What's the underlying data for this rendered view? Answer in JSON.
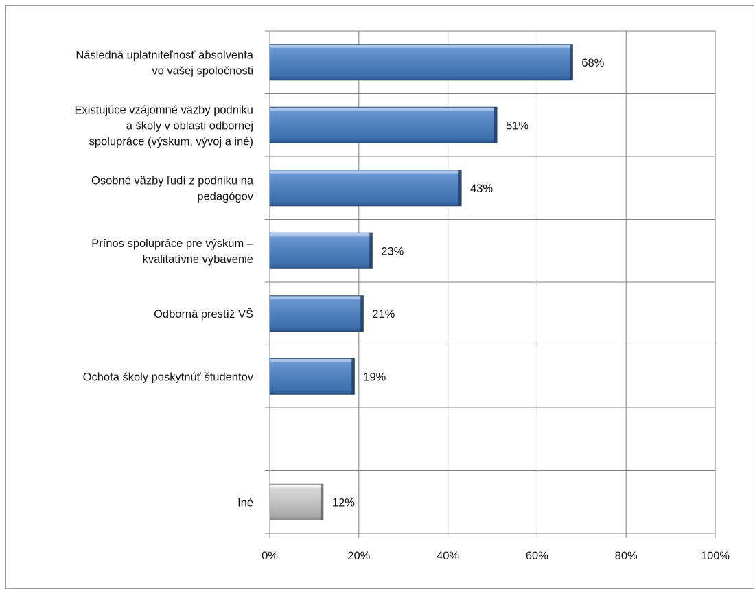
{
  "chart_data": {
    "type": "bar",
    "orientation": "horizontal",
    "categories": [
      [
        "Následná uplatniteľnosť absolventa",
        "vo vašej spoločnosti"
      ],
      [
        "Existujúce vzájomné väzby podniku",
        "a školy v oblasti odbornej",
        "spolupráce (výskum, vývoj a iné)"
      ],
      [
        "Osobné väzby ľudí z podniku na",
        "pedagógov"
      ],
      [
        "Prínos spolupráce pre výskum –",
        "kvalitatívne vybavenie"
      ],
      [
        "Odborná prestíž VŠ"
      ],
      [
        "Ochota školy poskytnúť  študentov"
      ],
      [
        ""
      ],
      [
        "Iné"
      ]
    ],
    "values": [
      68,
      51,
      43,
      23,
      21,
      19,
      null,
      12
    ],
    "value_labels": [
      "68%",
      "51%",
      "43%",
      "23%",
      "21%",
      "19%",
      "",
      "12%"
    ],
    "bar_colors": [
      "#4f81bd",
      "#4f81bd",
      "#4f81bd",
      "#4f81bd",
      "#4f81bd",
      "#4f81bd",
      "#4f81bd",
      "#c0c0c0"
    ],
    "xlim": [
      0,
      100
    ],
    "xticks": [
      "0%",
      "20%",
      "40%",
      "60%",
      "80%",
      "100%"
    ],
    "xtick_values": [
      0,
      20,
      40,
      60,
      80,
      100
    ],
    "grid": true,
    "legend": "none"
  },
  "colors": {
    "grid": "#808080",
    "bar_main": "#4f81bd",
    "bar_other": "#c0c0c0"
  }
}
